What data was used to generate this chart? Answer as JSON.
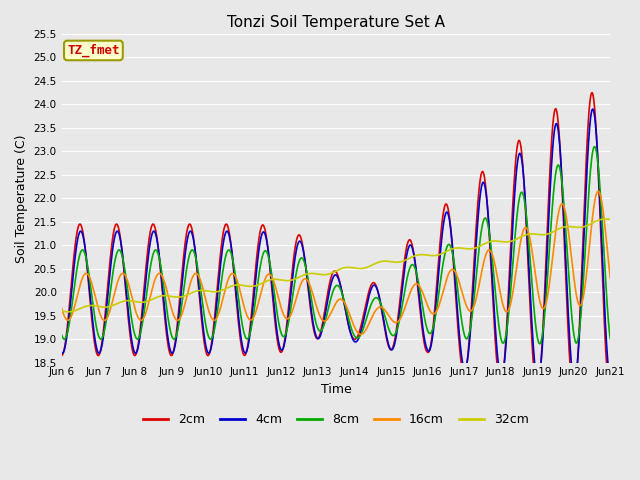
{
  "title": "Tonzi Soil Temperature Set A",
  "xlabel": "Time",
  "ylabel": "Soil Temperature (C)",
  "annotation": "TZ_fmet",
  "ylim": [
    18.5,
    25.5
  ],
  "xlim_days": [
    6,
    21
  ],
  "yticks": [
    18.5,
    19.0,
    19.5,
    20.0,
    20.5,
    21.0,
    21.5,
    22.0,
    22.5,
    23.0,
    23.5,
    24.0,
    24.5,
    25.0,
    25.5
  ],
  "xtick_labels": [
    "Jun 6",
    "Jun 7",
    "Jun 8",
    "Jun 9",
    "Jun 10",
    "Jun 11",
    "Jun 12",
    "Jun 13",
    "Jun 14",
    "Jun 15",
    "Jun 16",
    "Jun 17",
    "Jun 18",
    "Jun 19",
    "Jun 20",
    "Jun 21"
  ],
  "xtick_positions": [
    6,
    7,
    8,
    9,
    10,
    11,
    12,
    13,
    14,
    15,
    16,
    17,
    18,
    19,
    20,
    21
  ],
  "series": {
    "2cm": {
      "color": "#dd0000",
      "linewidth": 1.2
    },
    "4cm": {
      "color": "#0000cc",
      "linewidth": 1.2
    },
    "8cm": {
      "color": "#00aa00",
      "linewidth": 1.2
    },
    "16cm": {
      "color": "#ff8800",
      "linewidth": 1.2
    },
    "32cm": {
      "color": "#cccc00",
      "linewidth": 1.2
    }
  },
  "fig_facecolor": "#e8e8e8",
  "plot_bg_color": "#e8e8e8",
  "grid_color": "#ffffff",
  "annotation_box": {
    "facecolor": "#ffffcc",
    "edgecolor": "#999900",
    "text_color": "#cc0000"
  },
  "legend_colors": [
    "#dd0000",
    "#0000cc",
    "#00aa00",
    "#ff8800",
    "#cccc00"
  ],
  "legend_labels": [
    "2cm",
    "4cm",
    "8cm",
    "16cm",
    "32cm"
  ]
}
